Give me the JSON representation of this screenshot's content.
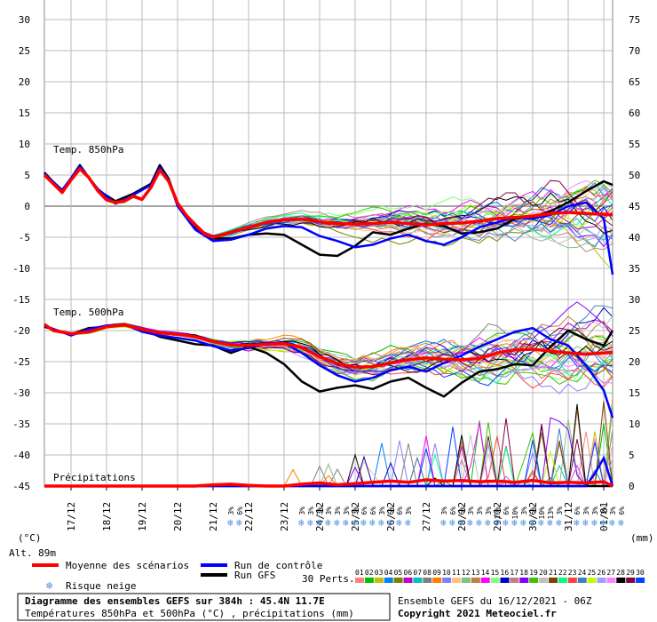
{
  "chart_data": {
    "type": "line",
    "title": "Diagramme des ensembles GEFS sur 384h : 45.4N 11.7E",
    "subtitle": "Températures 850hPa et 500hPa (°C) , précipitations (mm)",
    "run_info": "Ensemble GEFS du 16/12/2021 - 06Z",
    "copyright": "Copyright 2021 Meteociel.fr",
    "altitude": "Alt. 89m",
    "left_axis_unit": "(°C)",
    "right_axis_unit": "(mm)",
    "left_ticks": [
      "30",
      "25",
      "20",
      "15",
      "10",
      "5",
      "0",
      "-5",
      "-10",
      "-15",
      "-20",
      "-25",
      "-30",
      "-35",
      "-40",
      "-45"
    ],
    "right_ticks": [
      "75",
      "70",
      "65",
      "60",
      "55",
      "50",
      "45",
      "40",
      "35",
      "30",
      "25",
      "20",
      "15",
      "10",
      "5",
      "0"
    ],
    "ylim": [
      -45,
      30
    ],
    "y2lim": [
      0,
      75
    ],
    "x_dates": [
      "17/12",
      "18/12",
      "19/12",
      "20/12",
      "21/12",
      "22/12",
      "23/12",
      "24/12",
      "25/12",
      "26/12",
      "27/12",
      "28/12",
      "29/12",
      "30/12",
      "31/12",
      "01/01"
    ],
    "x_range_days": [
      16.25,
      32.25
    ],
    "panels": [
      {
        "label": "Temp. 850hPa"
      },
      {
        "label": "Temp. 500hPa"
      },
      {
        "label": "Précipitations"
      }
    ],
    "series": [
      {
        "name": "Moyenne des scénarios",
        "color": "#ff0000",
        "t850": [
          [
            16.25,
            5
          ],
          [
            16.5,
            3.6
          ],
          [
            16.75,
            2.2
          ],
          [
            17,
            4.2
          ],
          [
            17.25,
            6
          ],
          [
            17.5,
            4.6
          ],
          [
            17.75,
            2.5
          ],
          [
            18,
            1
          ],
          [
            18.25,
            0.6
          ],
          [
            18.5,
            0.8
          ],
          [
            18.75,
            1.6
          ],
          [
            19,
            1.1
          ],
          [
            19.25,
            3
          ],
          [
            19.5,
            5.8
          ],
          [
            19.75,
            4
          ],
          [
            20,
            0.5
          ],
          [
            20.25,
            -1.5
          ],
          [
            20.5,
            -3
          ],
          [
            20.75,
            -4.4
          ],
          [
            21,
            -5
          ],
          [
            21.25,
            -4.6
          ],
          [
            21.5,
            -4.2
          ],
          [
            21.75,
            -3.8
          ],
          [
            22,
            -3.4
          ],
          [
            22.25,
            -3
          ],
          [
            22.5,
            -2.6
          ],
          [
            23,
            -2.2
          ],
          [
            23.5,
            -2.1
          ],
          [
            24,
            -2.5
          ],
          [
            24.5,
            -2.8
          ],
          [
            25,
            -2.9
          ],
          [
            25.5,
            -2.8
          ],
          [
            26,
            -2.6
          ],
          [
            26.5,
            -2.8
          ],
          [
            27,
            -3
          ],
          [
            27.5,
            -2.8
          ],
          [
            28,
            -2.7
          ],
          [
            28.5,
            -2.4
          ],
          [
            29,
            -2
          ],
          [
            29.5,
            -1.8
          ],
          [
            30,
            -1.6
          ],
          [
            30.5,
            -1.2
          ],
          [
            31,
            -1
          ],
          [
            31.5,
            -1.2
          ],
          [
            32,
            -1.3
          ],
          [
            32.25,
            -1.4
          ]
        ],
        "t500": [
          [
            16.25,
            -19
          ],
          [
            16.5,
            -20
          ],
          [
            17,
            -20.5
          ],
          [
            17.5,
            -20.2
          ],
          [
            18,
            -19.4
          ],
          [
            18.5,
            -19.1
          ],
          [
            19,
            -19.8
          ],
          [
            19.5,
            -20.4
          ],
          [
            20,
            -20.6
          ],
          [
            20.5,
            -21
          ],
          [
            21,
            -21.8
          ],
          [
            21.5,
            -22.3
          ],
          [
            22,
            -22.4
          ],
          [
            22.5,
            -22.2
          ],
          [
            23,
            -22.1
          ],
          [
            23.5,
            -22.7
          ],
          [
            24,
            -24.2
          ],
          [
            24.5,
            -25.3
          ],
          [
            25,
            -25.9
          ],
          [
            25.5,
            -25.8
          ],
          [
            26,
            -25.2
          ],
          [
            26.5,
            -24.7
          ],
          [
            27,
            -24.4
          ],
          [
            27.5,
            -24.6
          ],
          [
            28,
            -24.7
          ],
          [
            28.5,
            -24.5
          ],
          [
            29,
            -23.6
          ],
          [
            29.5,
            -23.1
          ],
          [
            30,
            -23
          ],
          [
            30.5,
            -23.3
          ],
          [
            31,
            -23.6
          ],
          [
            31.5,
            -23.8
          ],
          [
            32,
            -23.6
          ],
          [
            32.25,
            -23.5
          ]
        ],
        "precip": [
          [
            16.25,
            0
          ],
          [
            20.5,
            0
          ],
          [
            21,
            0.2
          ],
          [
            21.5,
            0.3
          ],
          [
            22,
            0.1
          ],
          [
            22.5,
            0
          ],
          [
            23,
            0
          ],
          [
            23.5,
            0.3
          ],
          [
            24,
            0.5
          ],
          [
            24.5,
            0.2
          ],
          [
            25,
            0.4
          ],
          [
            25.5,
            0.6
          ],
          [
            26,
            0.8
          ],
          [
            26.5,
            0.6
          ],
          [
            27,
            1
          ],
          [
            27.5,
            0.8
          ],
          [
            28,
            0.9
          ],
          [
            28.5,
            0.7
          ],
          [
            29,
            0.8
          ],
          [
            29.5,
            0.6
          ],
          [
            30,
            0.9
          ],
          [
            30.5,
            0.5
          ],
          [
            31,
            0.6
          ],
          [
            31.5,
            0.5
          ],
          [
            32,
            0.7
          ],
          [
            32.25,
            0
          ]
        ]
      },
      {
        "name": "Run de contrôle",
        "color": "#0000ff",
        "t850": [
          [
            16.25,
            5.2
          ],
          [
            16.75,
            2.6
          ],
          [
            17.25,
            6.4
          ],
          [
            17.75,
            2.8
          ],
          [
            18.25,
            0.4
          ],
          [
            18.75,
            1.8
          ],
          [
            19.25,
            3.4
          ],
          [
            19.5,
            6.2
          ],
          [
            19.75,
            4.2
          ],
          [
            20,
            0
          ],
          [
            20.5,
            -3.8
          ],
          [
            21,
            -5.6
          ],
          [
            21.5,
            -5.4
          ],
          [
            22,
            -4.6
          ],
          [
            22.5,
            -3.6
          ],
          [
            23,
            -3.2
          ],
          [
            23.5,
            -3.4
          ],
          [
            24,
            -4.8
          ],
          [
            24.5,
            -5.6
          ],
          [
            25,
            -6.6
          ],
          [
            25.5,
            -6.2
          ],
          [
            26,
            -5.2
          ],
          [
            26.5,
            -4.6
          ],
          [
            27,
            -5.6
          ],
          [
            27.5,
            -6.2
          ],
          [
            28,
            -5
          ],
          [
            28.5,
            -3.4
          ],
          [
            29,
            -2.6
          ],
          [
            29.5,
            -1.8
          ],
          [
            30,
            -2
          ],
          [
            30.5,
            -1.4
          ],
          [
            31,
            0
          ],
          [
            31.5,
            0.6
          ],
          [
            32,
            -2
          ],
          [
            32.25,
            -11
          ]
        ],
        "t500": [
          [
            16.25,
            -19.2
          ],
          [
            17,
            -20.8
          ],
          [
            17.5,
            -19.8
          ],
          [
            18,
            -19.2
          ],
          [
            18.5,
            -19
          ],
          [
            19,
            -20.2
          ],
          [
            19.5,
            -20.8
          ],
          [
            20,
            -21.2
          ],
          [
            20.5,
            -21.6
          ],
          [
            21,
            -22.5
          ],
          [
            21.5,
            -23.2
          ],
          [
            22,
            -22.8
          ],
          [
            22.5,
            -22
          ],
          [
            23,
            -22
          ],
          [
            23.5,
            -23.6
          ],
          [
            24,
            -25.6
          ],
          [
            24.5,
            -27.2
          ],
          [
            25,
            -28.2
          ],
          [
            25.5,
            -27.6
          ],
          [
            26,
            -26.4
          ],
          [
            26.5,
            -25.8
          ],
          [
            27,
            -26.6
          ],
          [
            27.5,
            -25.2
          ],
          [
            28,
            -24
          ],
          [
            28.5,
            -22.6
          ],
          [
            29,
            -21.4
          ],
          [
            29.5,
            -20.2
          ],
          [
            30,
            -19.6
          ],
          [
            30.5,
            -21.4
          ],
          [
            31,
            -22.4
          ],
          [
            31.5,
            -25.6
          ],
          [
            32,
            -29.6
          ],
          [
            32.25,
            -34
          ]
        ],
        "precip": [
          [
            16.25,
            0
          ],
          [
            31.5,
            0
          ],
          [
            31.75,
            2
          ],
          [
            32,
            4.5
          ],
          [
            32.25,
            0
          ]
        ]
      },
      {
        "name": "Run GFS",
        "color": "#000000",
        "t850": [
          [
            16.25,
            5.4
          ],
          [
            16.75,
            2.4
          ],
          [
            17.25,
            6.6
          ],
          [
            17.75,
            2.6
          ],
          [
            18.25,
            0.8
          ],
          [
            18.75,
            2
          ],
          [
            19.25,
            3.6
          ],
          [
            19.5,
            6.6
          ],
          [
            19.75,
            4.4
          ],
          [
            20,
            0.4
          ],
          [
            20.5,
            -3.4
          ],
          [
            21,
            -5.2
          ],
          [
            21.5,
            -5.2
          ],
          [
            22,
            -4.6
          ],
          [
            22.5,
            -4.4
          ],
          [
            23,
            -4.6
          ],
          [
            23.5,
            -6.2
          ],
          [
            24,
            -7.8
          ],
          [
            24.5,
            -8
          ],
          [
            25,
            -6.4
          ],
          [
            25.5,
            -4.2
          ],
          [
            26,
            -4.6
          ],
          [
            26.5,
            -3.6
          ],
          [
            27,
            -2.8
          ],
          [
            27.5,
            -3.2
          ],
          [
            28,
            -4.4
          ],
          [
            28.5,
            -4.2
          ],
          [
            29,
            -3.6
          ],
          [
            29.5,
            -2
          ],
          [
            30,
            -1.8
          ],
          [
            30.5,
            -0.8
          ],
          [
            31,
            0.6
          ],
          [
            31.5,
            2.4
          ],
          [
            32,
            4
          ],
          [
            32.25,
            3.4
          ]
        ],
        "t500": [
          [
            16.25,
            -19.4
          ],
          [
            17,
            -20.6
          ],
          [
            17.5,
            -19.6
          ],
          [
            18,
            -19.4
          ],
          [
            18.5,
            -19
          ],
          [
            19,
            -19.8
          ],
          [
            19.5,
            -21
          ],
          [
            20,
            -21.6
          ],
          [
            20.5,
            -22.2
          ],
          [
            21,
            -22.4
          ],
          [
            21.5,
            -23.6
          ],
          [
            22,
            -22.6
          ],
          [
            22.5,
            -23.6
          ],
          [
            23,
            -25.4
          ],
          [
            23.5,
            -28.2
          ],
          [
            24,
            -29.8
          ],
          [
            24.5,
            -29.2
          ],
          [
            25,
            -28.8
          ],
          [
            25.5,
            -29.4
          ],
          [
            26,
            -28.2
          ],
          [
            26.5,
            -27.6
          ],
          [
            27,
            -29.2
          ],
          [
            27.5,
            -30.6
          ],
          [
            28,
            -28.4
          ],
          [
            28.5,
            -26.6
          ],
          [
            29,
            -26.2
          ],
          [
            29.5,
            -25.4
          ],
          [
            30,
            -25.6
          ],
          [
            30.5,
            -22.6
          ],
          [
            31,
            -20
          ],
          [
            31.5,
            -21.4
          ],
          [
            32,
            -22.4
          ],
          [
            32.25,
            -20
          ]
        ],
        "precip": [
          [
            16.25,
            0
          ],
          [
            32.25,
            0
          ]
        ]
      }
    ],
    "perturbation_count_label": "30 Perts.",
    "perturbation_ids": [
      "01",
      "02",
      "03",
      "04",
      "05",
      "06",
      "07",
      "08",
      "09",
      "10",
      "11",
      "12",
      "13",
      "14",
      "15",
      "16",
      "17",
      "18",
      "19",
      "20",
      "21",
      "22",
      "23",
      "24",
      "25",
      "26",
      "27",
      "28",
      "29",
      "30"
    ],
    "perturbation_colors": [
      "#ff8080",
      "#00c000",
      "#c0c000",
      "#0080ff",
      "#808000",
      "#c000c0",
      "#00c0c0",
      "#808080",
      "#ff8000",
      "#8080ff",
      "#ffc080",
      "#80c080",
      "#c08040",
      "#ff00ff",
      "#80ff80",
      "#0000c0",
      "#c08080",
      "#8000ff",
      "#40c000",
      "#c0c0c0",
      "#804000",
      "#00ff80",
      "#ff4040",
      "#4080c0",
      "#c0ff00",
      "#a0a0ff",
      "#ff80ff",
      "#000000",
      "#800040",
      "#0040ff"
    ],
    "snow_risk_label": "Risque neige",
    "snow_percent_marks": [
      {
        "day": 21.5,
        "labels": [
          "3%",
          "6%"
        ]
      },
      {
        "day": 23.5,
        "labels": [
          "3%",
          "3%",
          "3%",
          "3%",
          "3%",
          "3%",
          "3%",
          "6%",
          "6%"
        ]
      },
      {
        "day": 25.75,
        "labels": [
          "3%",
          "6%",
          "6%",
          "3%"
        ]
      },
      {
        "day": 27.5,
        "labels": [
          "3%",
          "6%",
          "6%",
          "3%",
          "3%",
          "3%",
          "10%",
          "6%"
        ]
      },
      {
        "day": 29.5,
        "labels": [
          "10%",
          "3%",
          "6%",
          "10%",
          "13%",
          "3%"
        ]
      },
      {
        "day": 31.25,
        "labels": [
          "6%",
          "3%",
          "3%",
          "3%",
          "3%",
          "6%"
        ]
      }
    ],
    "legend_items": [
      {
        "label": "Moyenne des scénarios",
        "color": "#ff0000"
      },
      {
        "label": "Run de contrôle",
        "color": "#0000ff"
      },
      {
        "label": "Run GFS",
        "color": "#000000"
      }
    ],
    "grid": true
  }
}
